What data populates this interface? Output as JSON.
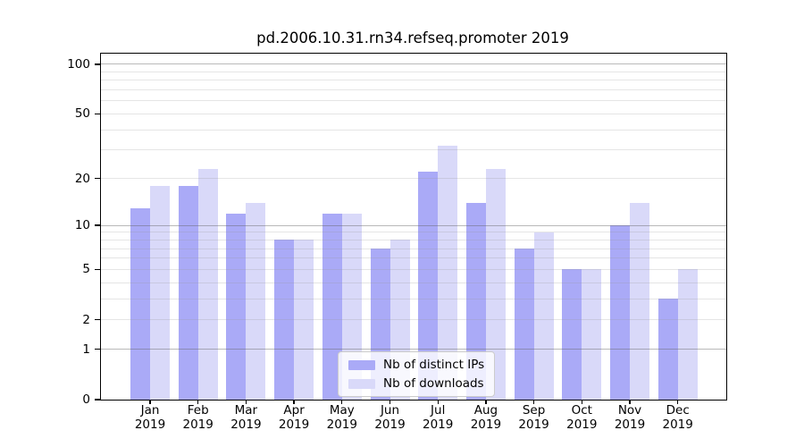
{
  "chart_data": {
    "type": "bar",
    "title": "pd.2006.10.31.rn34.refseq.promoter 2019",
    "categories": [
      "Jan",
      "Feb",
      "Mar",
      "Apr",
      "May",
      "Jun",
      "Jul",
      "Aug",
      "Sep",
      "Oct",
      "Nov",
      "Dec"
    ],
    "x_year_label": "2019",
    "series": [
      {
        "name": "Nb of distinct IPs",
        "color": "#aaaaf7",
        "values": [
          13,
          18,
          12,
          8,
          12,
          7,
          22,
          14,
          7,
          5,
          10,
          3
        ]
      },
      {
        "name": "Nb of downloads",
        "color": "#d9d9f9",
        "values": [
          18,
          23,
          14,
          8,
          12,
          8,
          32,
          23,
          9,
          5,
          14,
          5
        ]
      }
    ],
    "yscale": "log1p",
    "ylim": [
      0,
      116
    ],
    "yticks": [
      0,
      1,
      2,
      5,
      10,
      20,
      50,
      100
    ],
    "ytick_labels": [
      "0",
      "1",
      "2",
      "5",
      "10",
      "20",
      "50",
      "100"
    ],
    "yticks_minor": [
      2,
      3,
      4,
      5,
      6,
      7,
      8,
      9,
      20,
      30,
      40,
      50,
      60,
      70,
      80,
      90
    ],
    "yticks_major_grid": [
      1,
      10,
      100
    ],
    "grid": true,
    "legend": {
      "position": "lower center"
    },
    "colors": {
      "major_grid": "rgba(100,100,100,0.45)",
      "minor_grid": "rgba(150,150,150,0.25)",
      "spine": "#000000",
      "text": "#000000",
      "legend_bg": "rgba(255,255,255,0.8)",
      "legend_border": "#cccccc"
    }
  }
}
